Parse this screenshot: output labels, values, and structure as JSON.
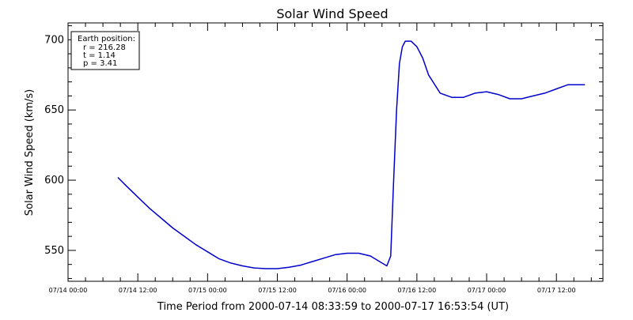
{
  "chart_data": {
    "type": "line",
    "title": "Solar Wind Speed",
    "xlabel": "Time Period from 2000-07-14 08:33:59 to 2000-07-17 16:53:54 (UT)",
    "ylabel": "Solar Wind Speed (km/s)",
    "xlim": [
      "2000-07-14 00:00",
      "2000-07-17 20:00"
    ],
    "ylim": [
      528,
      712
    ],
    "x_tick_labels": [
      "07/14 00:00",
      "07/14 12:00",
      "07/15 00:00",
      "07/15 12:00",
      "07/16 00:00",
      "07/16 12:00",
      "07/17 00:00",
      "07/17 12:00"
    ],
    "x_tick_values": [
      "2000-07-14 00:00",
      "2000-07-14 12:00",
      "2000-07-15 00:00",
      "2000-07-15 12:00",
      "2000-07-16 00:00",
      "2000-07-16 12:00",
      "2000-07-17 00:00",
      "2000-07-17 12:00"
    ],
    "y_ticks": [
      550,
      600,
      650,
      700
    ],
    "grid": false,
    "line_color": "#0000cc",
    "annotation": {
      "heading": "Earth position:",
      "lines": [
        "r = 216.28",
        "t = 1.14",
        "p = 3.41"
      ],
      "placement": "top-left"
    },
    "series": [
      {
        "x": [
          "2000-07-14 08:34",
          "2000-07-14 10:00",
          "2000-07-14 12:00",
          "2000-07-14 14:00",
          "2000-07-14 16:00",
          "2000-07-14 18:00",
          "2000-07-14 20:00",
          "2000-07-14 22:00",
          "2000-07-15 00:00",
          "2000-07-15 02:00",
          "2000-07-15 04:00",
          "2000-07-15 06:00",
          "2000-07-15 08:00",
          "2000-07-15 10:00",
          "2000-07-15 12:00",
          "2000-07-15 14:00",
          "2000-07-15 16:00",
          "2000-07-15 18:00",
          "2000-07-15 20:00",
          "2000-07-15 22:00",
          "2000-07-16 00:00",
          "2000-07-16 02:00",
          "2000-07-16 04:00",
          "2000-07-16 06:00",
          "2000-07-16 06:50",
          "2000-07-16 07:30",
          "2000-07-16 08:00",
          "2000-07-16 08:30",
          "2000-07-16 09:00",
          "2000-07-16 09:30",
          "2000-07-16 10:00",
          "2000-07-16 11:00",
          "2000-07-16 12:00",
          "2000-07-16 13:00",
          "2000-07-16 14:00",
          "2000-07-16 16:00",
          "2000-07-16 18:00",
          "2000-07-16 20:00",
          "2000-07-16 22:00",
          "2000-07-17 00:00",
          "2000-07-17 02:00",
          "2000-07-17 04:00",
          "2000-07-17 06:00",
          "2000-07-17 08:00",
          "2000-07-17 10:00",
          "2000-07-17 12:00",
          "2000-07-17 14:00",
          "2000-07-17 16:00",
          "2000-07-17 16:54"
        ],
        "values": [
          602,
          596,
          588,
          580,
          573,
          566,
          560,
          554,
          549,
          544,
          541,
          539,
          537.5,
          537,
          537,
          538,
          539.5,
          542,
          544.5,
          547,
          548,
          548,
          546,
          541,
          539,
          546,
          600,
          650,
          683,
          695,
          699,
          699,
          695,
          687,
          675,
          662,
          659,
          659,
          662,
          663,
          661,
          658,
          658,
          660,
          662,
          665,
          668,
          668,
          668
        ]
      }
    ]
  }
}
